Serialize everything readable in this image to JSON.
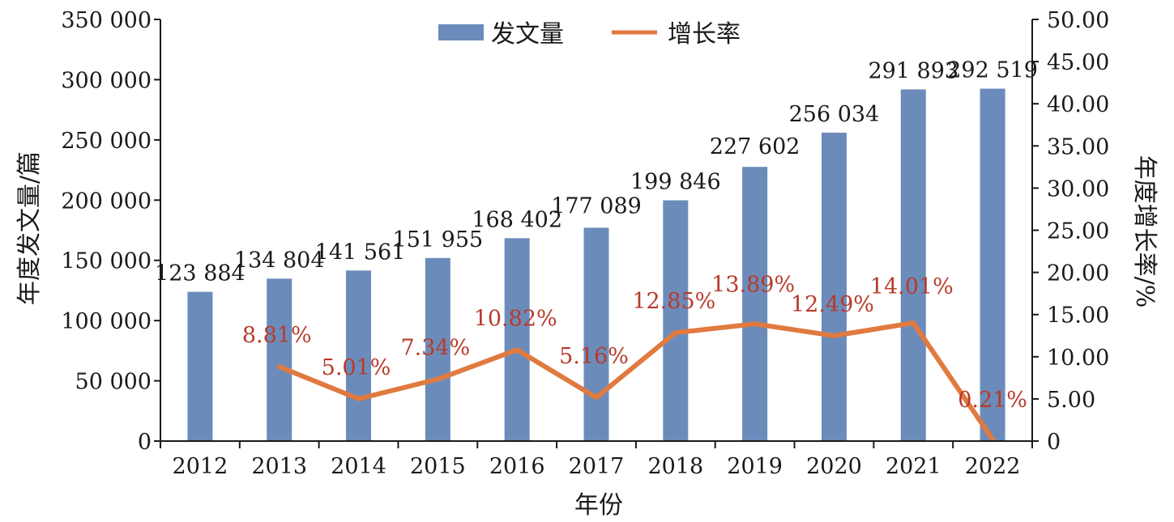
{
  "chart_data": {
    "type": "bar+line",
    "x": [
      "2012",
      "2013",
      "2014",
      "2015",
      "2016",
      "2017",
      "2018",
      "2019",
      "2020",
      "2021",
      "2022"
    ],
    "series": [
      {
        "name": "发文量",
        "type": "bar",
        "axis": "left",
        "values": [
          123884,
          134804,
          141561,
          151955,
          168402,
          177089,
          199846,
          227602,
          256034,
          291893,
          292519
        ],
        "labels": [
          "123 884",
          "134 804",
          "141 561",
          "151 955",
          "168 402",
          "177 089",
          "199 846",
          "227 602",
          "256 034",
          "291 893",
          "292 519"
        ]
      },
      {
        "name": "增长率",
        "type": "line",
        "axis": "right",
        "values": [
          null,
          8.81,
          5.01,
          7.34,
          10.82,
          5.16,
          12.85,
          13.89,
          12.49,
          14.01,
          0.21
        ],
        "labels": [
          "",
          "8.81%",
          "5.01%",
          "7.34%",
          "10.82%",
          "5.16%",
          "12.85%",
          "13.89%",
          "12.49%",
          "14.01%",
          "0.21%"
        ]
      }
    ],
    "xlabel": "年份",
    "ylabel": "年度发文量/篇",
    "y2label": "年度增长率/%",
    "ylim": [
      0,
      350000
    ],
    "y2lim": [
      0,
      50
    ],
    "yticks": [
      "0",
      "50 000",
      "100 000",
      "150 000",
      "200 000",
      "250 000",
      "300 000",
      "350 000"
    ],
    "y2ticks": [
      "0",
      "5.00",
      "10.00",
      "15.00",
      "20.00",
      "25.00",
      "30.00",
      "35.00",
      "40.00",
      "45.00",
      "50.00"
    ],
    "legend": "top-center",
    "grid": false,
    "colors": {
      "bar": "#6b8cba",
      "line": "#e07a3f",
      "rate_label": "#b83a2a",
      "axis": "#1a1a1a"
    }
  }
}
